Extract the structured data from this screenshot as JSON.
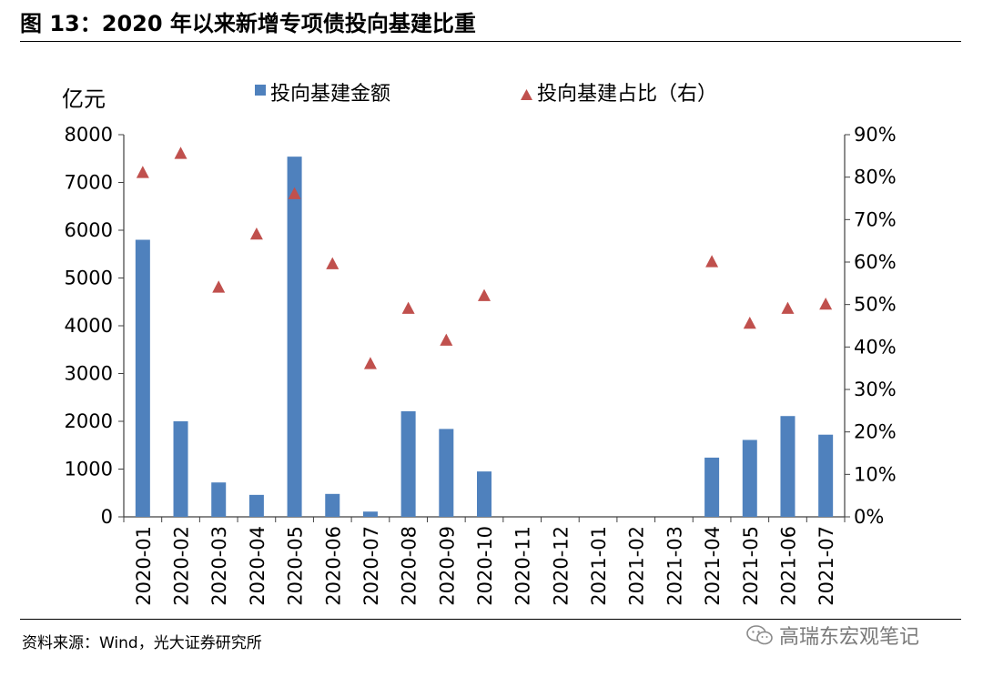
{
  "title": "图 13：2020 年以来新增专项债投向基建比重",
  "source": "资料来源：Wind，光大证券研究所",
  "watermark": "高瑞东宏观笔记",
  "chart_data": {
    "type": "bar",
    "categories": [
      "2020-01",
      "2020-02",
      "2020-03",
      "2020-04",
      "2020-05",
      "2020-06",
      "2020-07",
      "2020-08",
      "2020-09",
      "2020-10",
      "2020-11",
      "2020-12",
      "2021-01",
      "2021-02",
      "2021-03",
      "2021-04",
      "2021-05",
      "2021-06",
      "2021-07"
    ],
    "ylabel": "亿元",
    "ylim": [
      0,
      8000
    ],
    "yticks": [
      "0",
      "1000",
      "2000",
      "3000",
      "4000",
      "5000",
      "6000",
      "7000",
      "8000"
    ],
    "y2lim": [
      0,
      90
    ],
    "y2ticks": [
      "0%",
      "10%",
      "20%",
      "30%",
      "40%",
      "50%",
      "60%",
      "70%",
      "80%",
      "90%"
    ],
    "legend_position": "top",
    "series": [
      {
        "name": "投向基建金额",
        "type": "bar",
        "axis": "left",
        "color": "#4f81bd",
        "values": [
          5800,
          2000,
          720,
          460,
          7540,
          480,
          110,
          2210,
          1840,
          950,
          null,
          null,
          null,
          null,
          null,
          1240,
          1610,
          2110,
          1720
        ]
      },
      {
        "name": "投向基建占比（右）",
        "type": "scatter",
        "marker": "triangle",
        "axis": "right",
        "color": "#c0504d",
        "values": [
          81,
          85.5,
          54,
          66.5,
          76,
          59.5,
          36,
          49,
          41.5,
          52,
          null,
          null,
          null,
          null,
          null,
          60,
          45.5,
          49,
          50
        ]
      }
    ]
  }
}
